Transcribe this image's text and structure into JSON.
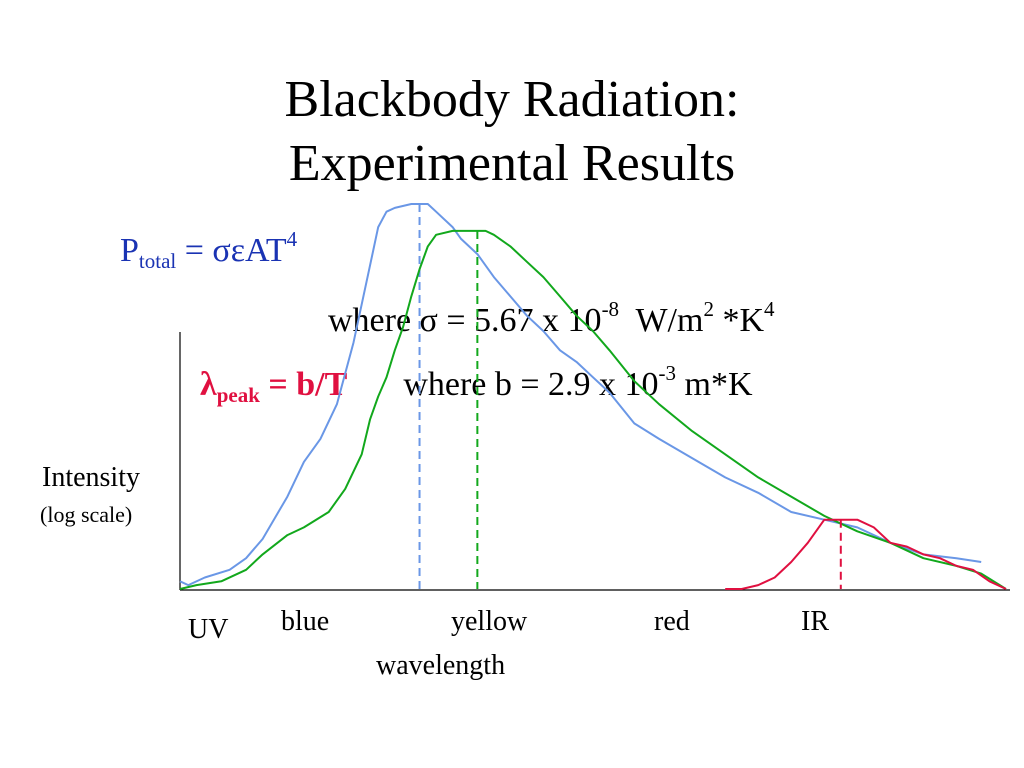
{
  "title_line1": "Blackbody Radiation:",
  "title_line2": "Experimental Results",
  "eq1": {
    "p": "P",
    "sub": "total",
    "rest": " = σεAT",
    "sup": "4"
  },
  "eq2": {
    "text": "where σ = 5.67 x 10",
    "sup": "-8",
    "unit": "W/m",
    "unit_sup": "2",
    "unit2": " *K",
    "unit2_sup": "4"
  },
  "eq3": {
    "lambda": "λ",
    "sub": "peak",
    "rest": " = b/T",
    "where": "where b = 2.9 x 10",
    "sup": "-3",
    "unit": " m*K"
  },
  "ylabel": "Intensity",
  "ylabel_sub": "(log scale)",
  "xlabel": "wavelength",
  "bands": {
    "uv": "UV",
    "blue": "blue",
    "yellow": "yellow",
    "red": "red",
    "ir": "IR"
  },
  "chart_data": {
    "type": "line",
    "xlabel": "wavelength",
    "ylabel": "Intensity (log scale)",
    "xlim": [
      0,
      100
    ],
    "ylim": [
      0,
      100
    ],
    "categories": [
      "UV",
      "blue",
      "yellow",
      "red",
      "IR"
    ],
    "series": [
      {
        "color": "#6a97e6",
        "peak_x": 29,
        "x": [
          0,
          1,
          3,
          6,
          8,
          10,
          13,
          15,
          17,
          19,
          21,
          23,
          24,
          25,
          26,
          28,
          29,
          30,
          31,
          33,
          34,
          36,
          38,
          40,
          42,
          44,
          46,
          48,
          50,
          52,
          55,
          58,
          62,
          66,
          70,
          74,
          78,
          82,
          86,
          90,
          94,
          97
        ],
        "y": [
          2,
          1,
          3,
          5,
          8,
          13,
          24,
          33,
          39,
          48,
          64,
          84,
          94,
          98,
          99,
          100,
          100,
          100,
          98,
          94,
          91,
          87,
          81,
          76,
          71,
          67,
          62,
          59,
          55,
          51,
          43,
          39,
          34,
          29,
          25,
          20,
          18,
          16,
          12,
          9,
          8,
          7
        ]
      },
      {
        "color": "#12a81c",
        "peak_x": 36,
        "x": [
          0,
          2,
          5,
          8,
          10,
          13,
          15,
          18,
          20,
          22,
          23,
          24,
          25,
          26,
          27,
          28,
          29,
          30,
          31,
          33,
          35,
          37,
          38,
          40,
          42,
          44,
          46,
          48,
          50,
          52,
          55,
          58,
          62,
          66,
          70,
          74,
          78,
          82,
          86,
          90,
          94,
          97,
          100
        ],
        "y": [
          0,
          1,
          2,
          5,
          9,
          14,
          16,
          20,
          26,
          35,
          44,
          50,
          55,
          62,
          68,
          76,
          83,
          89,
          92,
          93,
          93,
          93,
          92,
          89,
          85,
          81,
          76,
          71,
          67,
          62,
          54,
          48,
          41,
          35,
          29,
          24,
          19,
          15,
          12,
          8,
          6,
          4,
          0
        ]
      },
      {
        "color": "#e01040",
        "peak_x": 80,
        "x": [
          66,
          68,
          70,
          72,
          74,
          76,
          78,
          80,
          82,
          84,
          86,
          88,
          90,
          92,
          94,
          96,
          98,
          100
        ],
        "y": [
          0,
          0,
          1,
          3,
          7,
          12,
          18,
          18,
          18,
          16,
          12,
          11,
          9,
          8,
          6,
          5,
          2,
          0
        ]
      }
    ]
  }
}
